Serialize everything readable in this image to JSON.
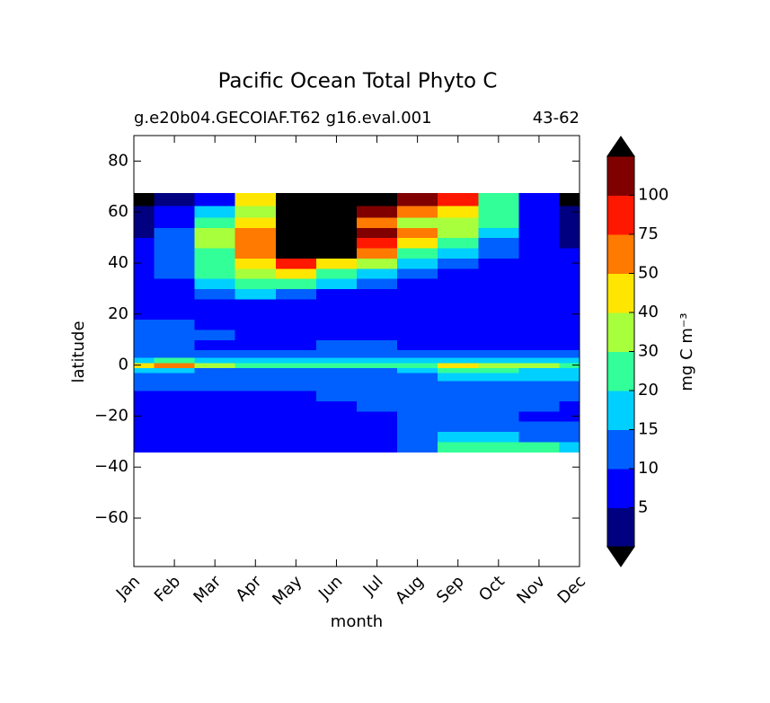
{
  "chart_data": {
    "type": "contour",
    "title": "Pacific Ocean Total Phyto C",
    "subtitle_left": "g.e20b04.GECOIAF.T62 g16.eval.001",
    "subtitle_right": "43-62",
    "xlabel": "month",
    "ylabel": "latitude",
    "colorbar_label": "mg C m⁻³",
    "categories": [
      "Jan",
      "Feb",
      "Mar",
      "Apr",
      "May",
      "Jun",
      "Jul",
      "Aug",
      "Sep",
      "Oct",
      "Nov",
      "Dec"
    ],
    "y": [
      -32,
      -28,
      -24,
      -20,
      -16,
      -12,
      -8,
      -4,
      -2,
      0,
      2,
      4,
      8,
      12,
      16,
      20,
      24,
      28,
      32,
      36,
      40,
      44,
      48,
      52,
      56,
      60,
      65
    ],
    "z": [
      [
        7,
        7,
        7,
        7,
        7,
        7,
        7,
        12,
        25,
        25,
        25,
        17
      ],
      [
        7,
        7,
        7,
        7,
        7,
        7,
        7,
        12,
        17,
        17,
        12,
        12
      ],
      [
        7,
        7,
        7,
        7,
        7,
        7,
        7,
        12,
        12,
        12,
        12,
        12
      ],
      [
        7,
        7,
        7,
        7,
        7,
        7,
        7,
        12,
        12,
        12,
        7,
        7
      ],
      [
        7,
        7,
        7,
        7,
        7,
        7,
        12,
        12,
        12,
        12,
        12,
        7
      ],
      [
        7,
        7,
        7,
        7,
        7,
        12,
        12,
        12,
        12,
        12,
        12,
        12
      ],
      [
        12,
        12,
        12,
        12,
        12,
        12,
        12,
        12,
        12,
        12,
        12,
        12
      ],
      [
        12,
        12,
        12,
        12,
        12,
        12,
        12,
        12,
        17,
        17,
        17,
        17
      ],
      [
        17,
        17,
        12,
        12,
        12,
        12,
        12,
        17,
        25,
        25,
        17,
        17
      ],
      [
        45,
        60,
        35,
        25,
        25,
        25,
        25,
        30,
        45,
        35,
        35,
        25
      ],
      [
        17,
        25,
        17,
        17,
        17,
        17,
        17,
        17,
        17,
        17,
        17,
        17
      ],
      [
        12,
        12,
        12,
        12,
        12,
        12,
        12,
        12,
        12,
        12,
        12,
        12
      ],
      [
        12,
        12,
        7,
        7,
        7,
        12,
        12,
        7,
        7,
        7,
        7,
        7
      ],
      [
        12,
        12,
        12,
        7,
        7,
        7,
        7,
        7,
        7,
        7,
        7,
        7
      ],
      [
        12,
        12,
        7,
        7,
        7,
        7,
        7,
        7,
        7,
        7,
        7,
        7
      ],
      [
        7,
        7,
        7,
        7,
        7,
        7,
        7,
        7,
        7,
        7,
        7,
        7
      ],
      [
        7,
        7,
        7,
        7,
        7,
        7,
        7,
        7,
        7,
        7,
        7,
        7
      ],
      [
        7,
        7,
        12,
        17,
        12,
        7,
        7,
        7,
        7,
        7,
        7,
        7
      ],
      [
        7,
        7,
        17,
        25,
        25,
        17,
        12,
        7,
        7,
        7,
        7,
        7
      ],
      [
        7,
        12,
        25,
        35,
        45,
        25,
        17,
        12,
        7,
        7,
        7,
        7
      ],
      [
        7,
        12,
        25,
        45,
        85,
        45,
        35,
        17,
        12,
        7,
        7,
        7
      ],
      [
        7,
        12,
        25,
        60,
        200,
        200,
        60,
        25,
        17,
        12,
        7,
        7
      ],
      [
        7,
        12,
        35,
        60,
        200,
        200,
        85,
        45,
        25,
        12,
        7,
        3
      ],
      [
        3,
        12,
        35,
        60,
        200,
        200,
        120,
        60,
        35,
        17,
        7,
        3
      ],
      [
        3,
        7,
        25,
        45,
        200,
        200,
        60,
        35,
        35,
        25,
        7,
        3
      ],
      [
        3,
        7,
        17,
        35,
        200,
        200,
        120,
        60,
        45,
        25,
        7,
        3
      ],
      [
        200,
        3,
        7,
        45,
        200,
        200,
        200,
        120,
        85,
        25,
        7,
        200
      ]
    ],
    "ylim": [
      -79,
      90
    ],
    "yticks": [
      {
        "value": -60,
        "label": "−60"
      },
      {
        "value": -40,
        "label": "−40"
      },
      {
        "value": -20,
        "label": "−20"
      },
      0,
      20,
      40,
      60,
      80
    ],
    "levels": [
      0,
      5,
      10,
      15,
      20,
      30,
      40,
      50,
      75,
      100,
      150
    ],
    "colors": [
      "#000080",
      "#0000ff",
      "#0060ff",
      "#00d0ff",
      "#33ff99",
      "#a8ff3c",
      "#ffe600",
      "#ff7a00",
      "#ff1800",
      "#800000"
    ],
    "under_color": "#000000",
    "over_color": "#000000",
    "colorbar_ticks": [
      5,
      10,
      15,
      20,
      30,
      40,
      50,
      75,
      100
    ]
  }
}
